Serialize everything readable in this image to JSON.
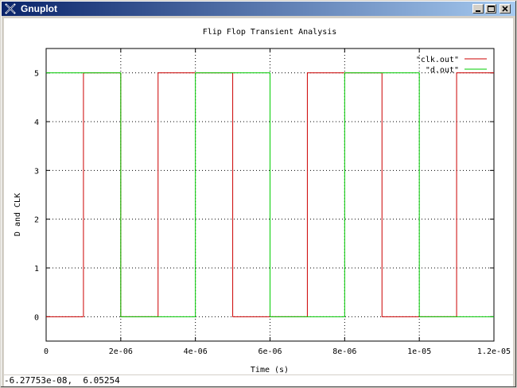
{
  "window": {
    "title": "Gnuplot",
    "app_icon": "gnuplot-icon",
    "buttons": {
      "minimize": "minimize-icon",
      "maximize": "maximize-icon",
      "close": "close-icon"
    }
  },
  "status": {
    "coords": "-6.27753e-08,  6.05254"
  },
  "chart_data": {
    "type": "line",
    "title": "Flip Flop Transient Analysis",
    "xlabel": "Time (s)",
    "ylabel": "D and CLK",
    "xlim": [
      0,
      1.2e-05
    ],
    "ylim": [
      -0.5,
      5.5
    ],
    "grid": true,
    "legend": "top-right",
    "x_ticks": [
      {
        "value": 0,
        "label": "0"
      },
      {
        "value": 2e-06,
        "label": "2e-06"
      },
      {
        "value": 4e-06,
        "label": "4e-06"
      },
      {
        "value": 6e-06,
        "label": "6e-06"
      },
      {
        "value": 8e-06,
        "label": "8e-06"
      },
      {
        "value": 1e-05,
        "label": "1e-05"
      },
      {
        "value": 1.2e-05,
        "label": "1.2e-05"
      }
    ],
    "y_ticks": [
      {
        "value": 0,
        "label": "0"
      },
      {
        "value": 1,
        "label": "1"
      },
      {
        "value": 2,
        "label": "2"
      },
      {
        "value": 3,
        "label": "3"
      },
      {
        "value": 4,
        "label": "4"
      },
      {
        "value": 5,
        "label": "5"
      }
    ],
    "series": [
      {
        "name": "\"clk.out\"",
        "color": "#cc0000",
        "x": [
          0,
          1e-06,
          1e-06,
          2e-06,
          2e-06,
          2e-06,
          2e-06,
          3e-06,
          3e-06,
          5e-06,
          5e-06,
          5e-06,
          5e-06,
          7e-06,
          7e-06,
          9e-06,
          9e-06,
          1.1e-05,
          1.1e-05,
          1.2e-05
        ],
        "y": [
          0,
          0,
          5,
          5,
          3.75,
          5,
          0,
          0,
          5,
          5,
          3.75,
          5,
          0,
          0,
          5,
          5,
          0,
          0,
          5,
          5
        ]
      },
      {
        "name": "\"d.out\"",
        "color": "#00cc00",
        "x": [
          0,
          2e-06,
          2e-06,
          4e-06,
          4e-06,
          6e-06,
          6e-06,
          8e-06,
          8e-06,
          1e-05,
          1e-05,
          1.2e-05
        ],
        "y": [
          5,
          5,
          0,
          0,
          5,
          5,
          0,
          0,
          5,
          5,
          0,
          0
        ]
      }
    ]
  }
}
